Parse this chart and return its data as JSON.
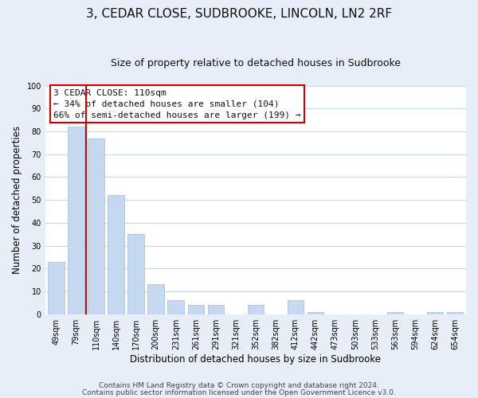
{
  "title": "3, CEDAR CLOSE, SUDBROOKE, LINCOLN, LN2 2RF",
  "subtitle": "Size of property relative to detached houses in Sudbrooke",
  "xlabel": "Distribution of detached houses by size in Sudbrooke",
  "ylabel": "Number of detached properties",
  "categories": [
    "49sqm",
    "79sqm",
    "110sqm",
    "140sqm",
    "170sqm",
    "200sqm",
    "231sqm",
    "261sqm",
    "291sqm",
    "321sqm",
    "352sqm",
    "382sqm",
    "412sqm",
    "442sqm",
    "473sqm",
    "503sqm",
    "533sqm",
    "563sqm",
    "594sqm",
    "624sqm",
    "654sqm"
  ],
  "values": [
    23,
    82,
    77,
    52,
    35,
    13,
    6,
    4,
    4,
    0,
    4,
    0,
    6,
    1,
    0,
    0,
    0,
    1,
    0,
    1,
    1
  ],
  "bar_color": "#c6d9f0",
  "bar_edge_color": "#a0bcd8",
  "vline_index": 2,
  "vline_color": "#cc0000",
  "ylim": [
    0,
    100
  ],
  "annotation_title": "3 CEDAR CLOSE: 110sqm",
  "annotation_line1": "← 34% of detached houses are smaller (104)",
  "annotation_line2": "66% of semi-detached houses are larger (199) →",
  "annotation_box_facecolor": "#ffffff",
  "annotation_box_edgecolor": "#cc0000",
  "footer_line1": "Contains HM Land Registry data © Crown copyright and database right 2024.",
  "footer_line2": "Contains public sector information licensed under the Open Government Licence v3.0.",
  "fig_facecolor": "#e8eef8",
  "plot_facecolor": "#ffffff",
  "grid_color": "#c8d8ea",
  "title_fontsize": 11,
  "subtitle_fontsize": 9,
  "tick_fontsize": 7,
  "ylabel_fontsize": 8.5,
  "xlabel_fontsize": 8.5,
  "footer_fontsize": 6.5
}
